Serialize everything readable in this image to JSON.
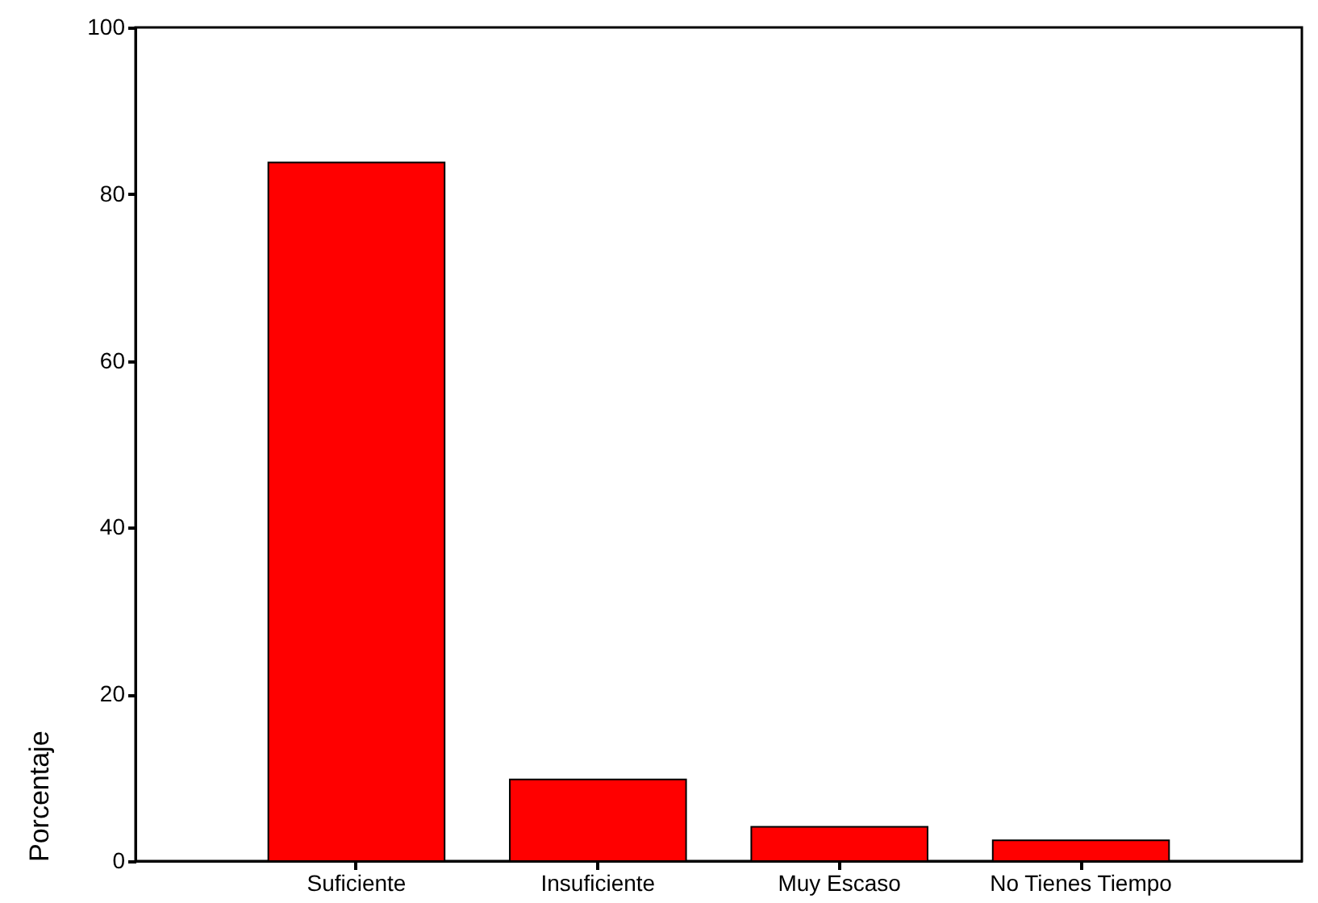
{
  "chart_data": {
    "type": "bar",
    "ylabel": "Porcentaje",
    "categories": [
      "Suficiente",
      "Insuficiente",
      "Muy Escaso",
      "No Tienes Tiempo"
    ],
    "values": [
      83.8,
      9.8,
      4.1,
      2.5
    ],
    "color": "#ff0000",
    "ylim": [
      0,
      100
    ],
    "yticks": [
      0,
      20,
      40,
      60,
      80,
      100
    ],
    "grid": false
  }
}
